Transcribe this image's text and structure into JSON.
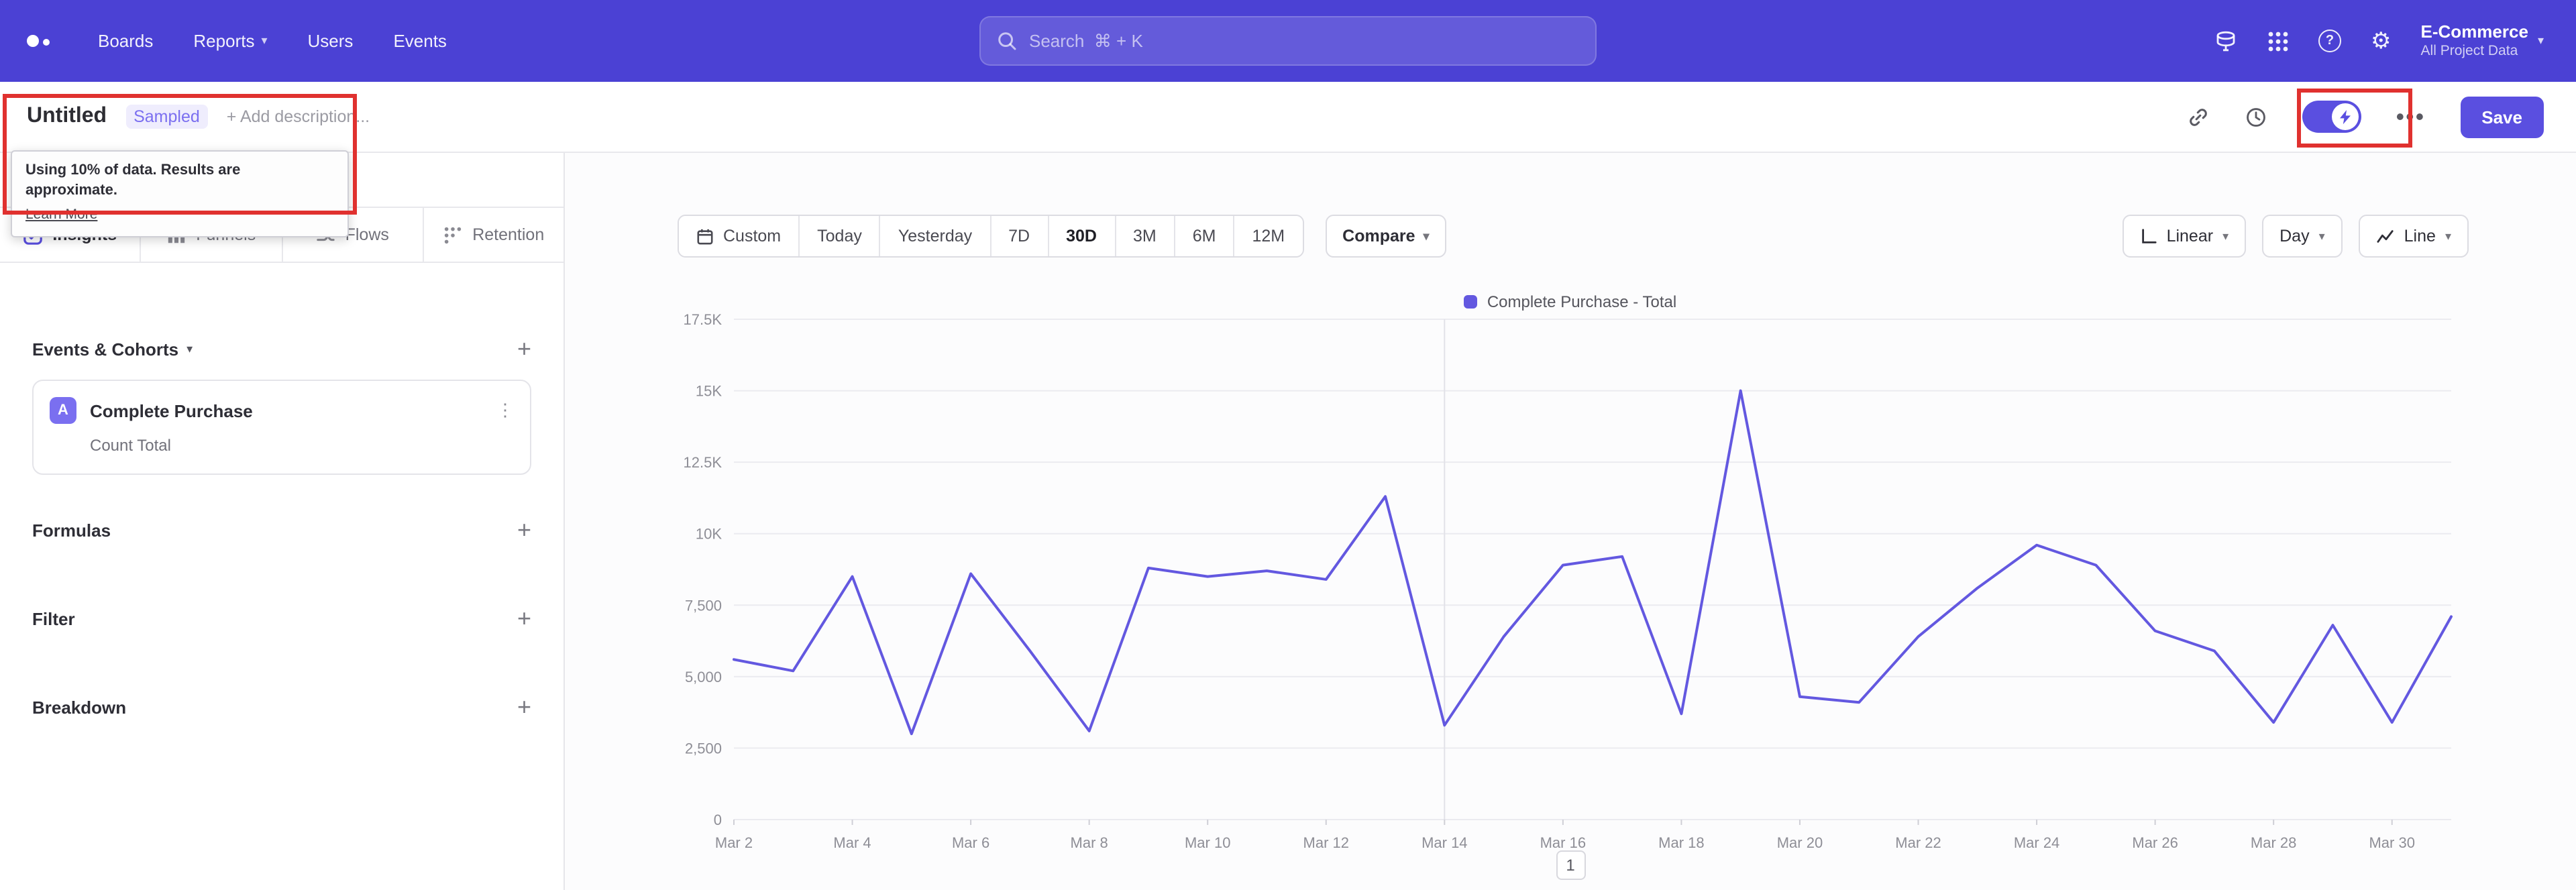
{
  "header": {
    "nav": [
      "Boards",
      "Reports",
      "Users",
      "Events"
    ],
    "search_placeholder": "Search  ⌘ + K",
    "project_name": "E-Commerce",
    "project_subtitle": "All Project Data"
  },
  "toolbar": {
    "title": "Untitled",
    "sampled": "Sampled",
    "add_description": "+ Add description...",
    "save": "Save",
    "tooltip_text": "Using 10% of data. Results are approximate.",
    "tooltip_link": "Learn More"
  },
  "sidebar": {
    "tabs": [
      "Insights",
      "Funnels",
      "Flows",
      "Retention"
    ],
    "events_header": "Events & Cohorts",
    "event_badge": "A",
    "event_name": "Complete Purchase",
    "event_metric": "Count Total",
    "sections": [
      "Formulas",
      "Filter",
      "Breakdown"
    ]
  },
  "controls": {
    "date_ranges": [
      "Custom",
      "Today",
      "Yesterday",
      "7D",
      "30D",
      "3M",
      "6M",
      "12M"
    ],
    "active_range": "30D",
    "compare": "Compare",
    "scale": "Linear",
    "granularity": "Day",
    "chart_type": "Line"
  },
  "pagination": {
    "page": "1"
  },
  "colors": {
    "header_bg": "#4b41d4",
    "accent": "#5a4fe0",
    "series": "#6358e0",
    "annotation": "#e0312f"
  },
  "chart_data": {
    "type": "line",
    "title": "",
    "legend": [
      "Complete Purchase - Total"
    ],
    "legend_position": "top-center",
    "grid": true,
    "series_color": "#6358e0",
    "x": [
      "Mar 2",
      "Mar 3",
      "Mar 4",
      "Mar 5",
      "Mar 6",
      "Mar 7",
      "Mar 8",
      "Mar 9",
      "Mar 10",
      "Mar 11",
      "Mar 12",
      "Mar 13",
      "Mar 14",
      "Mar 15",
      "Mar 16",
      "Mar 17",
      "Mar 18",
      "Mar 19",
      "Mar 20",
      "Mar 21",
      "Mar 22",
      "Mar 23",
      "Mar 24",
      "Mar 25",
      "Mar 26",
      "Mar 27",
      "Mar 28",
      "Mar 29",
      "Mar 30",
      "Mar 31"
    ],
    "values": [
      5600,
      5200,
      8500,
      3000,
      8600,
      5900,
      3100,
      8800,
      8500,
      8700,
      8400,
      11300,
      3300,
      6400,
      8900,
      9200,
      3700,
      15000,
      4300,
      4100,
      6400,
      8100,
      9600,
      8900,
      6600,
      5900,
      3400,
      6800,
      3400,
      7100
    ],
    "ylim": [
      0,
      17500
    ],
    "y_ticks": [
      {
        "v": 17500,
        "label": "17.5K"
      },
      {
        "v": 15000,
        "label": "15K"
      },
      {
        "v": 12500,
        "label": "12.5K"
      },
      {
        "v": 10000,
        "label": "10K"
      },
      {
        "v": 7500,
        "label": "7,500"
      },
      {
        "v": 5000,
        "label": "5,000"
      },
      {
        "v": 2500,
        "label": "2,500"
      },
      {
        "v": 0,
        "label": "0"
      }
    ],
    "x_label_every": 2,
    "vline_index": 12
  }
}
